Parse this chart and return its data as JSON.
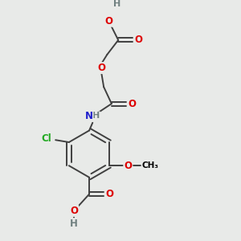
{
  "bg_color": "#e8eae8",
  "atom_colors": {
    "C": "#000000",
    "H": "#708080",
    "O": "#dd0000",
    "N": "#2020cc",
    "Cl": "#22aa22"
  },
  "bond_color": "#404040",
  "bond_width": 1.4,
  "font_size": 8.5,
  "fig_size": [
    3.0,
    3.0
  ],
  "xlim": [
    0,
    10
  ],
  "ylim": [
    0,
    10
  ]
}
